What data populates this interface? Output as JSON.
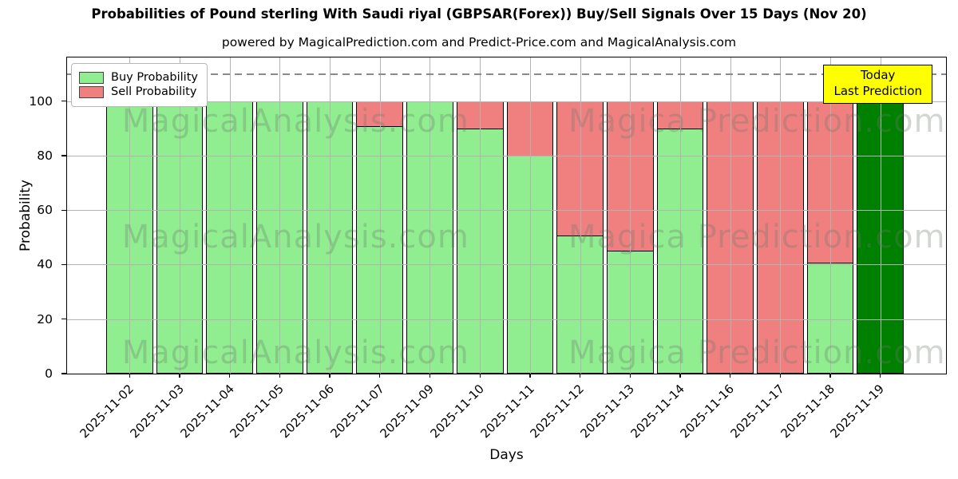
{
  "title": "Probabilities of Pound sterling With Saudi riyal (GBPSAR(Forex)) Buy/Sell Signals Over 15 Days (Nov 20)",
  "subtitle": "powered by MagicalPrediction.com and Predict-Price.com and MagicalAnalysis.com",
  "legend": {
    "items": [
      {
        "label": "Buy Probability",
        "color": "#90ee90"
      },
      {
        "label": "Sell Probability",
        "color": "#f08080"
      }
    ]
  },
  "annotation_box": {
    "line1": "Today",
    "line2": "Last Prediction",
    "bg_color": "#ffff00"
  },
  "watermarks": {
    "left": "MagicalAnalysis.com",
    "right": "Magica Prediction.com"
  },
  "axes": {
    "xlabel": "Days",
    "ylabel": "Probability",
    "yticks": [
      0,
      20,
      40,
      60,
      80,
      100
    ],
    "ymax": 116,
    "dashed_line_y": 110,
    "grid_color": "#b3b3b3"
  },
  "colors": {
    "buy": "#90ee90",
    "sell": "#f08080",
    "today": "#008000",
    "bar_edge": "#000000"
  },
  "chart_data": {
    "type": "bar",
    "stacked": true,
    "title": "Probabilities of Pound sterling With Saudi riyal (GBPSAR(Forex)) Buy/Sell Signals Over 15 Days (Nov 20)",
    "xlabel": "Days",
    "ylabel": "Probability",
    "ylim": [
      0,
      116
    ],
    "grid": true,
    "legend_position": "upper left",
    "categories": [
      "2025-11-02",
      "2025-11-03",
      "2025-11-04",
      "2025-11-05",
      "2025-11-06",
      "2025-11-07",
      "2025-11-09",
      "2025-11-10",
      "2025-11-11",
      "2025-11-12",
      "2025-11-13",
      "2025-11-14",
      "2025-11-16",
      "2025-11-17",
      "2025-11-18",
      "2025-11-19"
    ],
    "series": [
      {
        "name": "Buy Probability",
        "values": [
          100,
          100,
          100,
          100,
          100,
          91,
          100,
          90,
          80,
          50.5,
          45,
          90,
          0,
          0,
          40.5,
          100
        ]
      },
      {
        "name": "Sell Probability",
        "values": [
          0,
          0,
          0,
          0,
          0,
          9,
          0,
          10,
          20,
          49.5,
          55,
          10,
          100,
          100,
          59.5,
          0
        ]
      }
    ],
    "today_category": "2025-11-19",
    "today_value": 100
  }
}
